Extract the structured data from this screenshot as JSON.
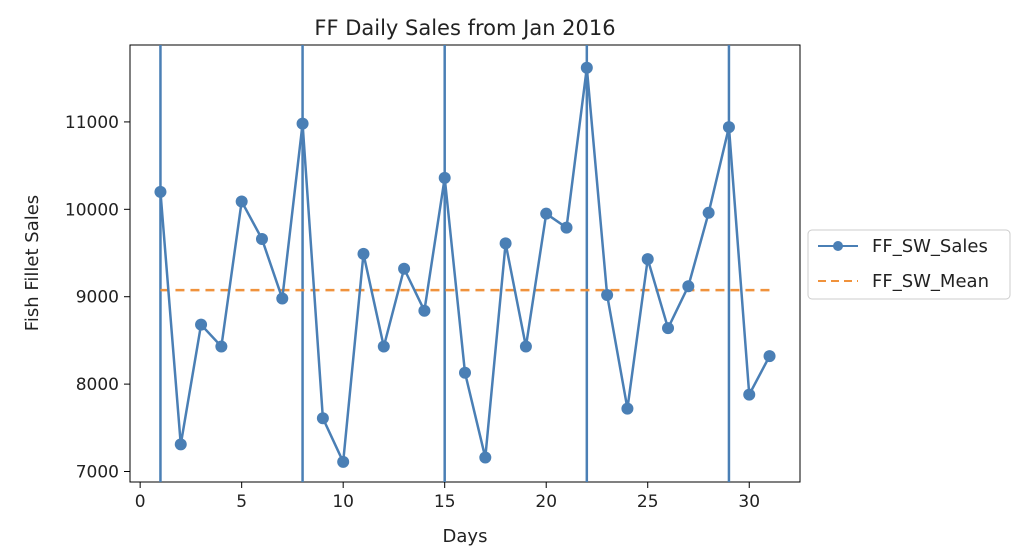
{
  "chart_data": {
    "type": "line",
    "title": "FF Daily Sales from Jan 2016",
    "xlabel": "Days",
    "ylabel": "Fish Fillet Sales",
    "xlim": [
      -0.5,
      32.5
    ],
    "ylim": [
      6880,
      11880
    ],
    "xticks": [
      0,
      5,
      10,
      15,
      20,
      25,
      30
    ],
    "yticks": [
      7000,
      8000,
      9000,
      10000,
      11000
    ],
    "grid": false,
    "legend_position": "outside-right",
    "vertical_lines_x": [
      1,
      8,
      15,
      22,
      29
    ],
    "series": [
      {
        "name": "FF_SW_Sales",
        "color": "#4a7fb5",
        "style": "solid-with-markers",
        "x": [
          1,
          2,
          3,
          4,
          5,
          6,
          7,
          8,
          9,
          10,
          11,
          12,
          13,
          14,
          15,
          16,
          17,
          18,
          19,
          20,
          21,
          22,
          23,
          24,
          25,
          26,
          27,
          28,
          29,
          30,
          31
        ],
        "y": [
          10200,
          7310,
          8680,
          8430,
          10090,
          9660,
          8980,
          10980,
          7610,
          7110,
          9490,
          8430,
          9320,
          8840,
          10360,
          8130,
          7160,
          9610,
          8430,
          9950,
          9790,
          11620,
          9020,
          7720,
          9430,
          8640,
          9120,
          9960,
          10940,
          7880,
          8320
        ]
      },
      {
        "name": "FF_SW_Mean",
        "color": "#f0923c",
        "style": "dashed",
        "x": [
          1,
          31
        ],
        "y": [
          9075,
          9075
        ]
      }
    ]
  }
}
